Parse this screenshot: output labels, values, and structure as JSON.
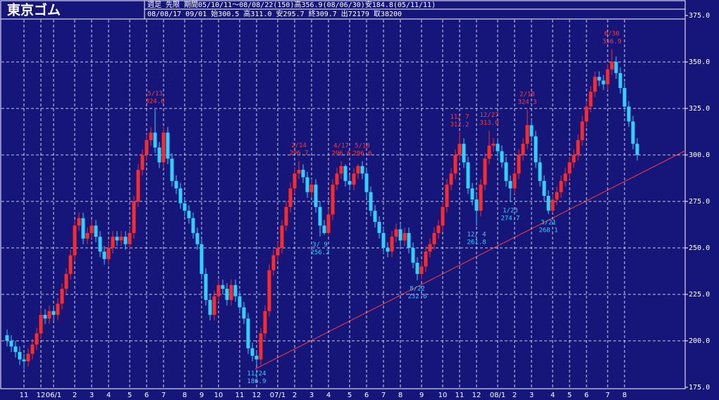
{
  "chart_data": {
    "type": "candlestick",
    "title": "東京ゴム",
    "subtitle": "週足 先限  期間05/10/11～08/08/22(150)高356.9(08/06/30)安184.8(05/11/11)",
    "info": "08/08/17 09/01 始300.5 高311.0 安295.7 終309.7 出72179 取38200",
    "up_color": "#ff2a2a",
    "down_color": "#33d0ff",
    "background": "#16167a",
    "grid": true,
    "ylim": [
      175,
      375
    ],
    "yticks": [
      {
        "value": 175,
        "label": "175.0"
      },
      {
        "value": 200,
        "label": "200.0"
      },
      {
        "value": 225,
        "label": "225.0"
      },
      {
        "value": 250,
        "label": "250.0"
      },
      {
        "value": 275,
        "label": "275.0"
      },
      {
        "value": 300,
        "label": "300.0"
      },
      {
        "value": 325,
        "label": "325.0"
      },
      {
        "value": 350,
        "label": "350.0"
      },
      {
        "value": 375,
        "label": "375.0"
      }
    ],
    "categories": [
      null,
      null,
      null,
      null,
      "11",
      null,
      null,
      null,
      "12",
      null,
      null,
      "06/1",
      null,
      null,
      null,
      null,
      "2",
      null,
      null,
      null,
      "3",
      null,
      null,
      null,
      "4",
      null,
      null,
      null,
      null,
      "5",
      null,
      null,
      null,
      "6",
      null,
      null,
      null,
      "7",
      null,
      null,
      null,
      null,
      "8",
      null,
      null,
      null,
      "9",
      null,
      null,
      null,
      "10",
      null,
      null,
      null,
      null,
      "11",
      null,
      null,
      null,
      "12",
      null,
      null,
      null,
      null,
      "07/1",
      null,
      null,
      null,
      "2",
      null,
      null,
      null,
      "3",
      null,
      null,
      null,
      "4",
      null,
      null,
      null,
      null,
      "5",
      null,
      null,
      null,
      "6",
      null,
      null,
      null,
      "7",
      null,
      null,
      null,
      "8",
      null,
      null,
      null,
      null,
      "9",
      null,
      null,
      null,
      null,
      "10",
      null,
      null,
      null,
      "11",
      null,
      null,
      null,
      "12",
      null,
      null,
      null,
      null,
      "08/1",
      null,
      null,
      null,
      "2",
      null,
      null,
      null,
      "3",
      null,
      null,
      null,
      null,
      "4",
      null,
      null,
      null,
      "5",
      null,
      null,
      null,
      "6",
      null,
      null,
      null,
      null,
      "7",
      null,
      null,
      null,
      "8",
      null,
      null,
      null
    ],
    "open": [
      203,
      200,
      197,
      194,
      190,
      189,
      193,
      198,
      204,
      214,
      212,
      216,
      214,
      220,
      228,
      236,
      246,
      262,
      266,
      255,
      258,
      262,
      256,
      248,
      244,
      250,
      256,
      254,
      256,
      252,
      258,
      275,
      292,
      300,
      308,
      312,
      304,
      296,
      312,
      298,
      286,
      282,
      274,
      270,
      266,
      258,
      252,
      236,
      222,
      214,
      224,
      230,
      228,
      222,
      230,
      224,
      218,
      212,
      196,
      192,
      190,
      204,
      216,
      238,
      246,
      250,
      262,
      272,
      282,
      290,
      292,
      288,
      280,
      284,
      272,
      262,
      258,
      268,
      284,
      290,
      294,
      286,
      284,
      290,
      294,
      290,
      280,
      270,
      264,
      258,
      250,
      248,
      256,
      260,
      254,
      258,
      250,
      242,
      236,
      240,
      248,
      252,
      258,
      262,
      272,
      284,
      290,
      300,
      306,
      296,
      282,
      276,
      270,
      284,
      298,
      305,
      306,
      302,
      296,
      286,
      282,
      290,
      300,
      306,
      316,
      310,
      296,
      286,
      278,
      270,
      276,
      280,
      286,
      290,
      296,
      300,
      308,
      318,
      326,
      334,
      342,
      340,
      338,
      346,
      350,
      344,
      336,
      326,
      318,
      306
    ],
    "high": [
      206,
      203,
      200,
      197,
      193,
      196,
      201,
      207,
      217,
      217,
      219,
      219,
      223,
      231,
      239,
      249,
      265,
      269,
      269,
      261,
      265,
      265,
      259,
      251,
      253,
      259,
      259,
      259,
      259,
      261,
      278,
      295,
      303,
      311,
      315,
      324.6,
      307,
      315,
      315,
      301,
      289,
      285,
      277,
      273,
      269,
      261,
      255,
      239,
      225,
      227,
      233,
      233,
      231,
      233,
      233,
      227,
      221,
      215,
      199,
      195,
      207,
      219,
      241,
      249,
      253,
      265,
      275,
      285,
      293,
      296.7,
      295,
      291,
      287,
      287,
      275,
      265,
      271,
      287,
      293,
      296.6,
      295,
      289,
      293,
      295,
      296.6,
      293,
      283,
      273,
      267,
      261,
      253,
      259,
      263,
      263,
      261,
      261,
      253,
      245,
      243,
      251,
      255,
      261,
      265,
      275,
      287,
      293,
      303,
      312.2,
      309,
      299,
      285,
      279,
      287,
      301,
      313,
      309,
      309,
      305,
      299,
      289,
      293,
      303,
      309,
      324.3,
      319,
      313,
      299,
      289,
      281,
      279,
      283,
      289,
      293,
      299,
      303,
      311,
      321,
      329,
      337,
      345,
      345,
      343,
      349,
      356.9,
      353,
      347,
      339,
      329,
      321,
      309
    ],
    "low": [
      197,
      194,
      191,
      187,
      184.8,
      186,
      190,
      195,
      201,
      209,
      209,
      211,
      211,
      217,
      225,
      233,
      243,
      259,
      252,
      252,
      255,
      253,
      245,
      241,
      241,
      247,
      251,
      251,
      249,
      249,
      255,
      272,
      289,
      297,
      305,
      301,
      293,
      293,
      295,
      283,
      279,
      271,
      267,
      263,
      255,
      249,
      233,
      219,
      211,
      211,
      221,
      225,
      219,
      219,
      221,
      215,
      209,
      193,
      189,
      186.9,
      187,
      201,
      213,
      235,
      243,
      247,
      259,
      269,
      279,
      287,
      285,
      277,
      277,
      269,
      256.2,
      257,
      257,
      265,
      281,
      287,
      283,
      281,
      281,
      287,
      287,
      277,
      267,
      261,
      255,
      247,
      245,
      245,
      253,
      251,
      251,
      247,
      239,
      232.6,
      233,
      237,
      245,
      249,
      255,
      259,
      269,
      281,
      287,
      297,
      293,
      279,
      273,
      261.8,
      267,
      281,
      295,
      302,
      299,
      293,
      283,
      274.7,
      279,
      287,
      297,
      303,
      307,
      293,
      283,
      275,
      268.1,
      269,
      273,
      277,
      283,
      287,
      293,
      297,
      305,
      315,
      323,
      331,
      337,
      335,
      335,
      343,
      341,
      333,
      323,
      315,
      303,
      297
    ],
    "close": [
      200,
      197,
      194,
      190,
      189,
      193,
      198,
      204,
      214,
      212,
      216,
      214,
      220,
      228,
      236,
      246,
      262,
      266,
      255,
      258,
      262,
      256,
      248,
      244,
      250,
      256,
      254,
      256,
      252,
      258,
      275,
      292,
      300,
      308,
      312,
      304,
      296,
      312,
      298,
      286,
      282,
      274,
      270,
      266,
      258,
      252,
      236,
      222,
      214,
      224,
      230,
      228,
      222,
      230,
      224,
      218,
      212,
      196,
      192,
      190,
      204,
      216,
      238,
      246,
      250,
      262,
      272,
      282,
      290,
      292,
      288,
      280,
      284,
      272,
      262,
      258,
      268,
      284,
      290,
      294,
      286,
      284,
      290,
      294,
      290,
      280,
      270,
      264,
      258,
      250,
      248,
      256,
      260,
      254,
      258,
      250,
      242,
      236,
      240,
      248,
      252,
      258,
      262,
      272,
      284,
      290,
      300,
      306,
      296,
      282,
      276,
      270,
      284,
      298,
      305,
      306,
      302,
      296,
      286,
      282,
      290,
      300,
      306,
      316,
      310,
      296,
      286,
      278,
      270,
      276,
      280,
      286,
      290,
      296,
      300,
      308,
      318,
      326,
      334,
      342,
      340,
      338,
      346,
      350,
      344,
      336,
      326,
      318,
      306,
      300
    ],
    "high_notes": [
      {
        "date": "5/13",
        "value": 324.6
      },
      {
        "date": "2/14",
        "value": 296.7
      },
      {
        "date": "4/17",
        "value": 296.6
      },
      {
        "date": "5/18",
        "value": 296.6
      },
      {
        "date": "11/ 7",
        "value": 312.2
      },
      {
        "date": "12/27",
        "value": 313,
        "label": "313.0"
      },
      {
        "date": "2/18",
        "value": 324.3
      },
      {
        "date": "6/30",
        "value": 356.9
      }
    ],
    "low_notes": [
      {
        "date": "11/24",
        "value": 186.9
      },
      {
        "date": "3/ 9",
        "value": 256.2
      },
      {
        "date": "8/22",
        "value": 232.6
      },
      {
        "date": "12/ 4",
        "value": 261.8
      },
      {
        "date": "1/23",
        "value": 274.7
      },
      {
        "date": "3/21",
        "value": 268.1
      }
    ]
  }
}
